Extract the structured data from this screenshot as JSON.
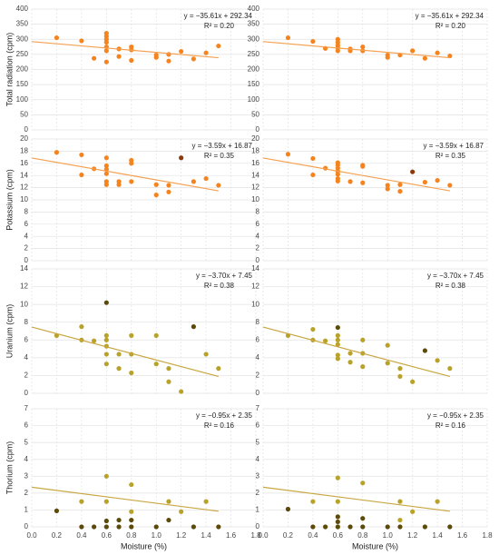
{
  "chart_data": [
    {
      "type": "scatter",
      "ylabel": "Total radiation (cpm)",
      "equation": "y = −35.61x + 292.34",
      "r2": "R² = 0.20",
      "trendline": {
        "slope": -35.61,
        "intercept": 292.34,
        "color": "#f5a050"
      },
      "xlim": [
        0,
        1.8
      ],
      "xticks": [
        0,
        0.2,
        0.4,
        0.6,
        0.8,
        1,
        1.2,
        1.4,
        1.6,
        1.8
      ],
      "ylim": [
        0,
        400
      ],
      "yticks": [
        0,
        50,
        100,
        150,
        200,
        250,
        300,
        350,
        400
      ],
      "grid": true,
      "series": [
        {
          "color": "#f5841f",
          "x": [
            0.2,
            0.4,
            0.5,
            0.6,
            0.6,
            0.6,
            0.6,
            0.6,
            0.6,
            0.6,
            0.7,
            0.7,
            0.8,
            0.8,
            0.8,
            1.0,
            1.0,
            1.1,
            1.1,
            1.2,
            1.3,
            1.4,
            1.5
          ],
          "values": [
            305,
            295,
            237,
            320,
            310,
            300,
            290,
            275,
            262,
            225,
            268,
            243,
            275,
            265,
            230,
            248,
            240,
            250,
            228,
            260,
            235,
            255,
            278
          ]
        }
      ]
    },
    {
      "type": "scatter",
      "equation": "y = −35.61x + 292.34",
      "r2": "R² = 0.20",
      "trendline": {
        "slope": -35.61,
        "intercept": 292.34,
        "color": "#f5a050"
      },
      "xlim": [
        0,
        1.8
      ],
      "xticks": [
        0,
        0.2,
        0.4,
        0.6,
        0.8,
        1,
        1.2,
        1.4,
        1.6,
        1.8
      ],
      "ylim": [
        0,
        400
      ],
      "yticks": [
        0,
        50,
        100,
        150,
        200,
        250,
        300,
        350,
        400
      ],
      "grid": true,
      "series": [
        {
          "color": "#f5841f",
          "x": [
            0.2,
            0.4,
            0.5,
            0.6,
            0.6,
            0.6,
            0.6,
            0.6,
            0.7,
            0.7,
            0.8,
            0.8,
            1.0,
            1.0,
            1.1,
            1.2,
            1.3,
            1.4,
            1.5
          ],
          "values": [
            305,
            293,
            270,
            300,
            290,
            280,
            272,
            262,
            268,
            262,
            275,
            262,
            248,
            240,
            248,
            262,
            237,
            255,
            245
          ]
        }
      ]
    },
    {
      "type": "scatter",
      "ylabel": "Potassium (cpm)",
      "equation": "y = −3.59x + 16.87",
      "r2": "R² = 0.35",
      "trendline": {
        "slope": -3.59,
        "intercept": 16.87,
        "color": "#f5a050"
      },
      "xlim": [
        0,
        1.8
      ],
      "xticks": [
        0,
        0.2,
        0.4,
        0.6,
        0.8,
        1,
        1.2,
        1.4,
        1.6,
        1.8
      ],
      "ylim": [
        0,
        20
      ],
      "yticks": [
        0,
        2,
        4,
        6,
        8,
        10,
        12,
        14,
        16,
        18,
        20
      ],
      "grid": true,
      "series": [
        {
          "color": "#f5841f",
          "x": [
            0.2,
            0.4,
            0.4,
            0.5,
            0.6,
            0.6,
            0.6,
            0.6,
            0.6,
            0.6,
            0.7,
            0.7,
            0.8,
            0.8,
            0.8,
            1.0,
            1.0,
            1.1,
            1.1,
            1.3,
            1.4,
            1.5
          ],
          "values": [
            17.8,
            17.4,
            14.1,
            15.1,
            16.9,
            15.6,
            15,
            14.3,
            13,
            12.5,
            13,
            12.5,
            16.5,
            16,
            13,
            12.5,
            10.8,
            12.4,
            11.3,
            13,
            13.5,
            12.4
          ]
        },
        {
          "color": "#8b3a0e",
          "x": [
            1.2
          ],
          "values": [
            16.9
          ]
        }
      ]
    },
    {
      "type": "scatter",
      "equation": "y = −3.59x + 16.87",
      "r2": "R² = 0.35",
      "trendline": {
        "slope": -3.59,
        "intercept": 16.87,
        "color": "#f5a050"
      },
      "xlim": [
        0,
        1.8
      ],
      "xticks": [
        0,
        0.2,
        0.4,
        0.6,
        0.8,
        1,
        1.2,
        1.4,
        1.6,
        1.8
      ],
      "ylim": [
        0,
        20
      ],
      "yticks": [
        0,
        2,
        4,
        6,
        8,
        10,
        12,
        14,
        16,
        18,
        20
      ],
      "grid": true,
      "series": [
        {
          "color": "#f5841f",
          "x": [
            0.2,
            0.4,
            0.4,
            0.5,
            0.6,
            0.6,
            0.6,
            0.6,
            0.6,
            0.6,
            0.6,
            0.7,
            0.8,
            0.8,
            0.8,
            1.0,
            1.0,
            1.1,
            1.1,
            1.3,
            1.4,
            1.5
          ],
          "values": [
            17.5,
            16.8,
            14.1,
            15.2,
            16.1,
            15.7,
            15.2,
            14.7,
            14.2,
            13.5,
            13.1,
            13,
            15.7,
            15.5,
            12.8,
            12.4,
            11.8,
            12.5,
            11.4,
            12.9,
            13.2,
            12.4
          ]
        },
        {
          "color": "#8b3a0e",
          "x": [
            1.2
          ],
          "values": [
            14.6
          ]
        }
      ]
    },
    {
      "type": "scatter",
      "ylabel": "Uranium (cpm)",
      "equation": "y = −3.70x + 7.45",
      "r2": "R² = 0.38",
      "trendline": {
        "slope": -3.7,
        "intercept": 7.45,
        "color": "#c8a640"
      },
      "xlim": [
        0,
        1.8
      ],
      "xticks": [
        0,
        0.2,
        0.4,
        0.6,
        0.8,
        1,
        1.2,
        1.4,
        1.6,
        1.8
      ],
      "ylim": [
        0,
        14
      ],
      "yticks": [
        0,
        2,
        4,
        6,
        8,
        10,
        12,
        14
      ],
      "grid": true,
      "series": [
        {
          "color": "#b8a22a",
          "x": [
            0.2,
            0.4,
            0.4,
            0.5,
            0.6,
            0.6,
            0.6,
            0.6,
            0.6,
            0.7,
            0.7,
            0.8,
            0.8,
            0.8,
            1.0,
            1.0,
            1.1,
            1.1,
            1.2,
            1.4,
            1.5
          ],
          "values": [
            6.5,
            7.5,
            6,
            5.9,
            6.5,
            6,
            5.3,
            4.4,
            3.3,
            4.4,
            2.8,
            6.5,
            4.4,
            2.3,
            6.5,
            3.3,
            2.8,
            1.3,
            0.2,
            4.4,
            2.8
          ]
        },
        {
          "color": "#5c4a0a",
          "x": [
            0.6,
            1.3
          ],
          "values": [
            10.2,
            7.5
          ]
        }
      ]
    },
    {
      "type": "scatter",
      "equation": "y = −3.70x + 7.45",
      "r2": "R² = 0.38",
      "trendline": {
        "slope": -3.7,
        "intercept": 7.45,
        "color": "#c8a640"
      },
      "xlim": [
        0,
        1.8
      ],
      "xticks": [
        0,
        0.2,
        0.4,
        0.6,
        0.8,
        1,
        1.2,
        1.4,
        1.6,
        1.8
      ],
      "ylim": [
        0,
        14
      ],
      "yticks": [
        0,
        2,
        4,
        6,
        8,
        10,
        12,
        14
      ],
      "grid": true,
      "series": [
        {
          "color": "#b8a22a",
          "x": [
            0.2,
            0.4,
            0.4,
            0.5,
            0.6,
            0.6,
            0.6,
            0.6,
            0.6,
            0.7,
            0.7,
            0.8,
            0.8,
            0.8,
            1.0,
            1.0,
            1.1,
            1.1,
            1.2,
            1.4,
            1.5
          ],
          "values": [
            6.5,
            7.2,
            6,
            5.9,
            6.5,
            6,
            5.5,
            4.3,
            3.9,
            4.5,
            3.5,
            6,
            4.5,
            3,
            5.4,
            3.4,
            2.8,
            1.9,
            1.3,
            3.7,
            2.8
          ]
        },
        {
          "color": "#5c4a0a",
          "x": [
            0.6,
            1.3
          ],
          "values": [
            7.4,
            4.8
          ]
        }
      ]
    },
    {
      "type": "scatter",
      "ylabel": "Thorium (cpm)",
      "xlabel": "Moisture (%)",
      "equation": "y = −0.95x + 2.35",
      "r2": "R² = 0.16",
      "trendline": {
        "slope": -0.95,
        "intercept": 2.35,
        "color": "#c8a640"
      },
      "xlim": [
        0,
        1.8
      ],
      "xticks": [
        {
          "value": 0,
          "label": "0.0"
        },
        {
          "value": 0.2,
          "label": "0.2"
        },
        {
          "value": 0.4,
          "label": "0.4"
        },
        {
          "value": 0.6,
          "label": "0.6"
        },
        {
          "value": 0.8,
          "label": "0.8"
        },
        {
          "value": 1,
          "label": "1.0"
        },
        {
          "value": 1.2,
          "label": "1.2"
        },
        {
          "value": 1.4,
          "label": "1.4"
        },
        {
          "value": 1.6,
          "label": "1.6"
        },
        {
          "value": 1.8,
          "label": "1.8"
        }
      ],
      "ylim": [
        0,
        7
      ],
      "yticks": [
        0,
        1,
        2,
        3,
        4,
        5,
        6,
        7
      ],
      "grid": true,
      "series": [
        {
          "color": "#b8a22a",
          "x": [
            0.4,
            0.6,
            0.6,
            0.8,
            0.8,
            1.1,
            1.2,
            1.4
          ],
          "values": [
            1.5,
            3.0,
            1.5,
            2.5,
            0.9,
            1.5,
            0.9,
            1.5
          ]
        },
        {
          "color": "#5c4a0a",
          "x": [
            0.2,
            0.4,
            0.5,
            0.6,
            0.6,
            0.7,
            0.7,
            0.8,
            0.8,
            1.0,
            1.1,
            1.3,
            1.5
          ],
          "values": [
            0.95,
            0,
            0,
            0.35,
            0,
            0.4,
            0,
            0.4,
            0,
            0,
            0.4,
            0,
            0
          ]
        }
      ]
    },
    {
      "type": "scatter",
      "xlabel": "Moisture (%)",
      "equation": "y = −0.95x + 2.35",
      "r2": "R² = 0.16",
      "trendline": {
        "slope": -0.95,
        "intercept": 2.35,
        "color": "#c8a640"
      },
      "xlim": [
        0,
        1.8
      ],
      "xticks": [
        {
          "value": 0,
          "label": "0.0"
        },
        {
          "value": 0.2,
          "label": "0.2"
        },
        {
          "value": 0.4,
          "label": "0.4"
        },
        {
          "value": 0.6,
          "label": "0.6"
        },
        {
          "value": 0.8,
          "label": "0.8"
        },
        {
          "value": 1,
          "label": "1.0"
        },
        {
          "value": 1.2,
          "label": "1.2"
        },
        {
          "value": 1.4,
          "label": "1.4"
        },
        {
          "value": 1.6,
          "label": "1.6"
        },
        {
          "value": 1.8,
          "label": "1.8"
        }
      ],
      "ylim": [
        0,
        7
      ],
      "yticks": [
        0,
        1,
        2,
        3,
        4,
        5,
        6,
        7
      ],
      "grid": true,
      "series": [
        {
          "color": "#b8a22a",
          "x": [
            0.4,
            0.6,
            0.6,
            0.8,
            1.1,
            1.1,
            1.2,
            1.4
          ],
          "values": [
            1.5,
            2.9,
            1.5,
            2.6,
            1.5,
            0.4,
            0.9,
            1.5
          ]
        },
        {
          "color": "#5c4a0a",
          "x": [
            0.2,
            0.4,
            0.5,
            0.6,
            0.6,
            0.6,
            0.7,
            0.8,
            0.8,
            1.0,
            1.1,
            1.3,
            1.5
          ],
          "values": [
            1.05,
            0,
            0,
            0.6,
            0.3,
            0,
            0,
            0.5,
            0,
            0,
            0,
            0,
            0
          ]
        }
      ]
    }
  ]
}
